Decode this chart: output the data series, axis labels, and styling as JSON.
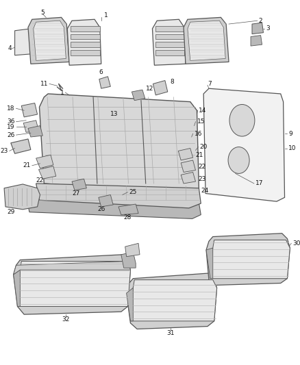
{
  "background_color": "#ffffff",
  "figsize": [
    4.38,
    5.33
  ],
  "dpi": 100,
  "line_color": "#555555",
  "text_color": "#111111",
  "font_size": 6.5,
  "fill_light": "#e8e8e8",
  "fill_mid": "#d0d0d0",
  "fill_dark": "#b8b8b8",
  "fill_panel": "#f2f2f2",
  "stripe_color": "#bbbbbb",
  "grid_color": "#aaaaaa"
}
